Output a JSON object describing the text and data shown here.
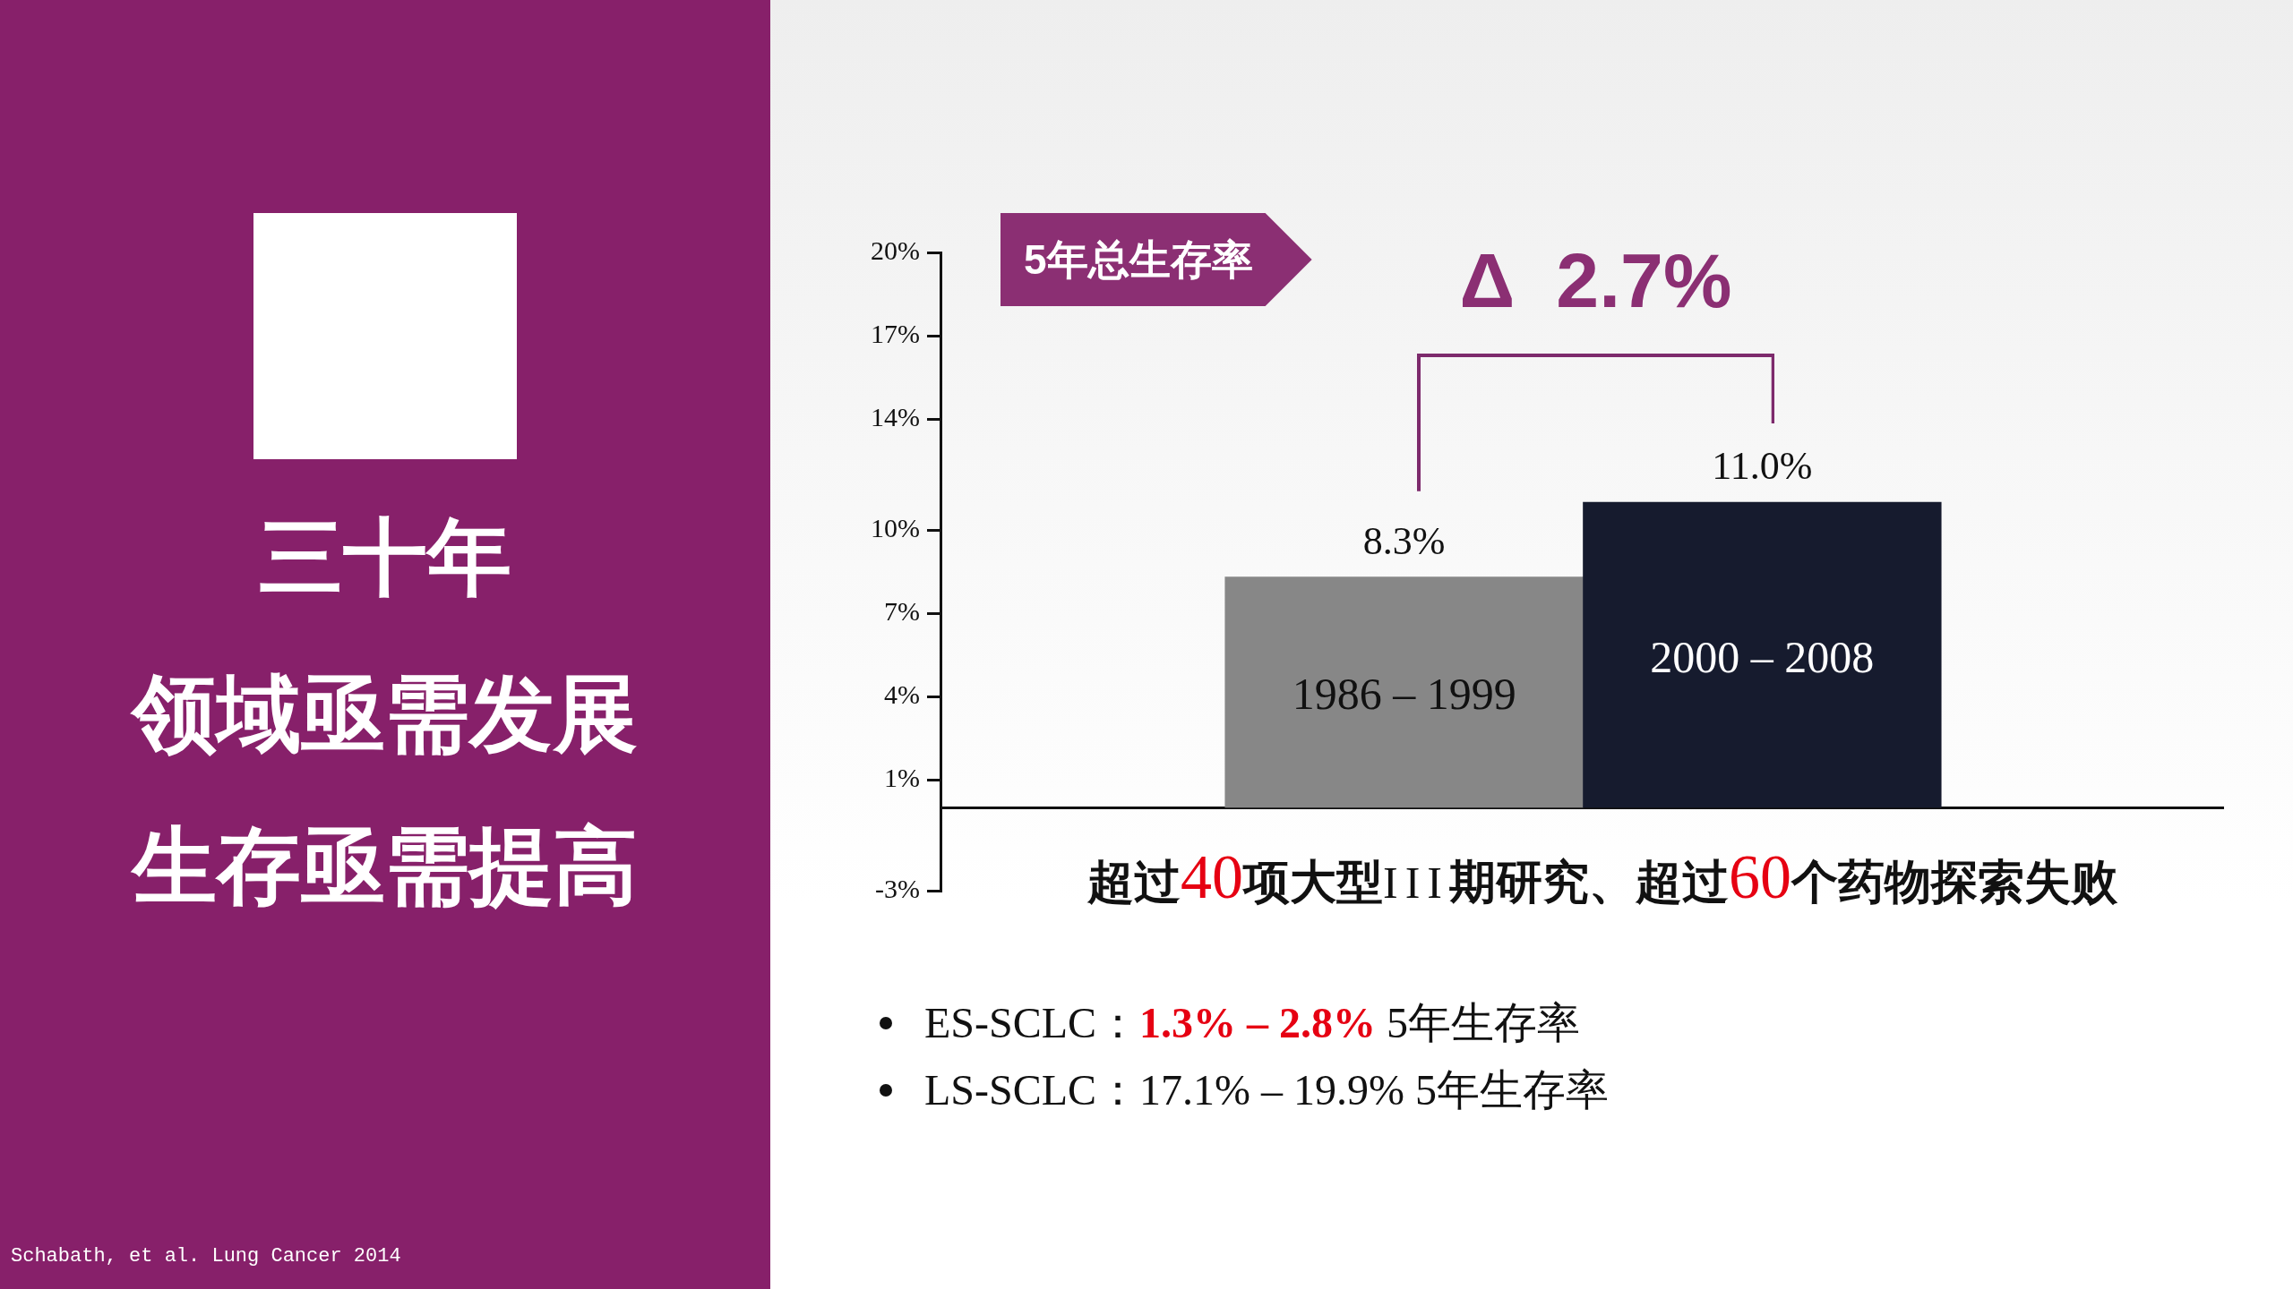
{
  "chart_data": {
    "type": "bar",
    "title": "5年总生存率",
    "categories": [
      "1986 – 1999",
      "2000 – 2008"
    ],
    "values": [
      8.3,
      11.0
    ],
    "colors": [
      "#878787",
      "#161b2e"
    ],
    "value_labels": [
      "8.3%",
      "11.0%"
    ],
    "ylim": [
      -3,
      20
    ],
    "yticks": [
      {
        "value": -3,
        "label": "-3%"
      },
      {
        "value": 1,
        "label": "1%"
      },
      {
        "value": 4,
        "label": "4%"
      },
      {
        "value": 7,
        "label": "7%"
      },
      {
        "value": 10,
        "label": "10%"
      },
      {
        "value": 14,
        "label": "14%"
      },
      {
        "value": 17,
        "label": "17%"
      },
      {
        "value": 20,
        "label": "20%"
      }
    ],
    "annotations": [
      "三十年",
      "领域亟需发展",
      "生存亟需提高",
      "Δ 2.7%",
      "超过40项大型III期研究、超过60个药物探索失败",
      "ES-SCLC：1.3% – 2.8% 5年生存率",
      "LS-SCLC：17.1% – 19.9% 5年生存率",
      "Schabath, et al. Lung Cancer 2014"
    ]
  }
}
